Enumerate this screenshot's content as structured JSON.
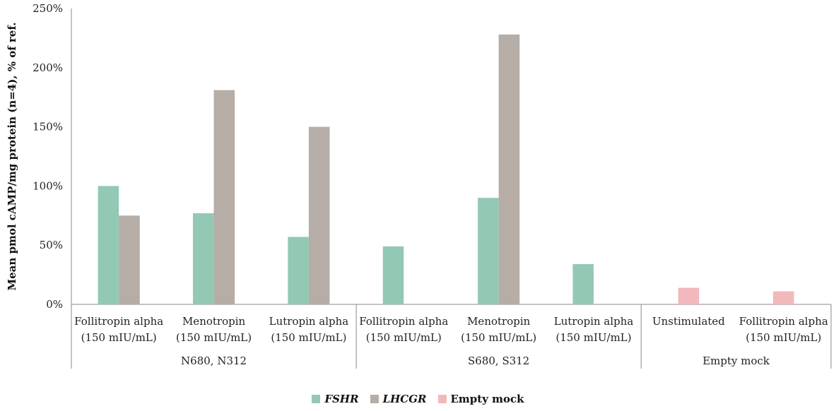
{
  "chart_data": {
    "type": "bar",
    "ylabel": "Mean pmol cAMP/mg protein (n=4), % of ref.",
    "ylim": [
      0,
      250
    ],
    "yticks": [
      "0%",
      "50%",
      "100%",
      "150%",
      "200%",
      "250%"
    ],
    "grid": false,
    "legend_position": "bottom-center",
    "groups": [
      {
        "label": "N680, N312",
        "categories": [
          {
            "line1": "Follitropin alpha",
            "line2": "(150 mIU/mL)",
            "values": {
              "FSHR": 100,
              "LHCGR": 75
            }
          },
          {
            "line1": "Menotropin",
            "line2": "(150 mIU/mL)",
            "values": {
              "FSHR": 77,
              "LHCGR": 181
            }
          },
          {
            "line1": "Lutropin alpha",
            "line2": "(150 mIU/mL)",
            "values": {
              "FSHR": 57,
              "LHCGR": 150
            }
          }
        ]
      },
      {
        "label": "S680, S312",
        "categories": [
          {
            "line1": "Follitropin alpha",
            "line2": "(150 mIU/mL)",
            "values": {
              "FSHR": 49
            }
          },
          {
            "line1": "Menotropin",
            "line2": "(150 mIU/mL)",
            "values": {
              "FSHR": 90,
              "LHCGR": 228
            }
          },
          {
            "line1": "Lutropin alpha",
            "line2": "(150 mIU/mL)",
            "values": {
              "FSHR": 34
            }
          }
        ]
      },
      {
        "label": "Empty mock",
        "categories": [
          {
            "line1": "Unstimulated",
            "line2": "",
            "values": {
              "Empty mock": 14
            }
          },
          {
            "line1": "Follitropin alpha",
            "line2": "(150 mIU/mL)",
            "values": {
              "Empty mock": 11
            }
          }
        ]
      }
    ],
    "series": [
      {
        "name": "FSHR",
        "color": "#93c9b4",
        "italic": true
      },
      {
        "name": "LHCGR",
        "color": "#b5ada6",
        "italic": true
      },
      {
        "name": "Empty mock",
        "color": "#f3b8bc",
        "italic": false
      }
    ]
  }
}
